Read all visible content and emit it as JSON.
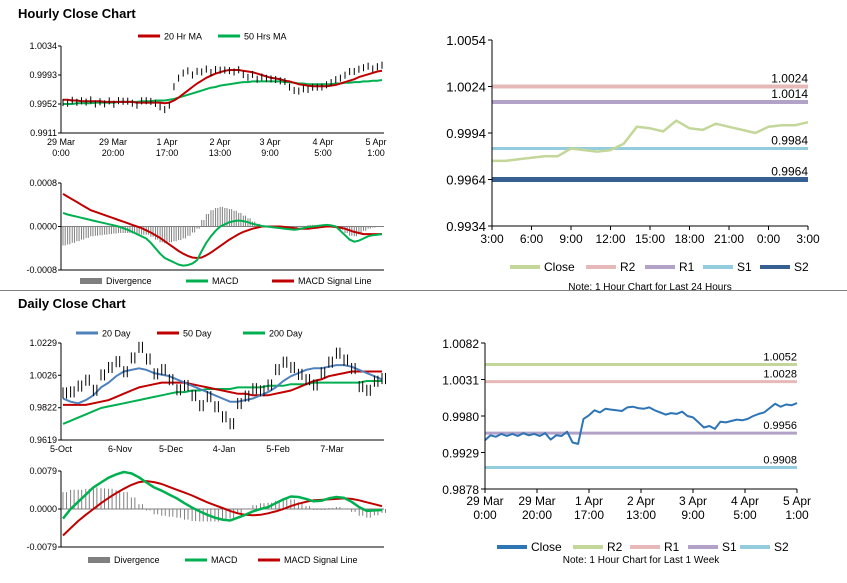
{
  "titles": {
    "hourly": "Hourly Close Chart",
    "daily": "Daily Close Chart"
  },
  "colors": {
    "ma20": "#c00000",
    "ma50": "#00b050",
    "price": "#000000",
    "divergence": "#7f7f7f",
    "macd": "#00b050",
    "signal": "#c00000",
    "close_light": "#c4d79b",
    "r2": "#e6b9b8",
    "r1": "#b3a2c7",
    "s1": "#93cddd",
    "s2": "#376092",
    "close_blue": "#2e75b6",
    "green_r2": "#c4d79b",
    "pink_r1": "#e6b9b8",
    "purple_s1": "#b3a2c7",
    "cyan_s2": "#93cddd"
  },
  "chart_data": [
    {
      "id": "hourly_price",
      "type": "line",
      "legend": [
        "20 Hr MA",
        "50 Hrs MA"
      ],
      "yticks": [
        "1.0034",
        "0.9993",
        "0.9952",
        "0.9911"
      ],
      "ylim": [
        0.9911,
        1.0034
      ],
      "xticks": [
        [
          "29 Mar",
          "0:00"
        ],
        [
          "29 Mar",
          "20:00"
        ],
        [
          "1 Apr",
          "17:00"
        ],
        [
          "2 Apr",
          "13:00"
        ],
        [
          "3 Apr",
          "9:00"
        ],
        [
          "4 Apr",
          "5:00"
        ],
        [
          "5 Apr",
          "1:00"
        ]
      ],
      "price": [
        0.9956,
        0.9954,
        0.9957,
        0.9953,
        0.9958,
        0.9955,
        0.9957,
        0.9954,
        0.9956,
        0.9952,
        0.9955,
        0.9953,
        0.9957,
        0.9955,
        0.9958,
        0.9954,
        0.995,
        0.9955,
        0.9958,
        0.9956,
        0.9952,
        0.995,
        0.9945,
        0.995,
        0.9975,
        0.999,
        0.9996,
        0.9998,
        0.9995,
        0.9999,
        0.9997,
        1.0,
        0.9998,
        1.0001,
        0.9999,
        1.0002,
        1.0,
        0.9997,
        0.9999,
        0.9995,
        0.999,
        0.9993,
        0.9989,
        0.9991,
        0.9988,
        0.9986,
        0.9988,
        0.9985,
        0.9983,
        0.9978,
        0.9972,
        0.997,
        0.9972,
        0.9974,
        0.9976,
        0.9975,
        0.9978,
        0.998,
        0.9982,
        0.9985,
        0.999,
        0.9993,
        0.9997,
        1.0,
        1.0002,
        1.0003,
        1.0004,
        1.0003,
        1.0005,
        1.0006
      ],
      "ma20": [
        0.9958,
        0.9958,
        0.9957,
        0.9957,
        0.9956,
        0.9956,
        0.9956,
        0.9956,
        0.9956,
        0.9955,
        0.9955,
        0.9955,
        0.9955,
        0.9955,
        0.9955,
        0.9955,
        0.9954,
        0.9954,
        0.9954,
        0.9954,
        0.9954,
        0.9954,
        0.9953,
        0.9954,
        0.9957,
        0.9961,
        0.9966,
        0.9971,
        0.9976,
        0.9981,
        0.9985,
        0.9989,
        0.9992,
        0.9995,
        0.9997,
        0.9999,
        1.0,
        1.0,
        1.0,
        0.9999,
        0.9998,
        0.9997,
        0.9995,
        0.9993,
        0.9991,
        0.9989,
        0.9988,
        0.9987,
        0.9985,
        0.9984,
        0.9982,
        0.998,
        0.9979,
        0.9978,
        0.9977,
        0.9977,
        0.9977,
        0.9977,
        0.9978,
        0.9979,
        0.9981,
        0.9983,
        0.9985,
        0.9987,
        0.999,
        0.9992,
        0.9994,
        0.9996,
        0.9998,
        0.9999
      ],
      "ma50": [
        0.9952,
        0.9952,
        0.9952,
        0.9953,
        0.9953,
        0.9953,
        0.9953,
        0.9954,
        0.9954,
        0.9954,
        0.9954,
        0.9954,
        0.9955,
        0.9955,
        0.9955,
        0.9955,
        0.9955,
        0.9956,
        0.9956,
        0.9956,
        0.9957,
        0.9957,
        0.9957,
        0.9958,
        0.9959,
        0.9961,
        0.9963,
        0.9965,
        0.9967,
        0.9969,
        0.9971,
        0.9973,
        0.9975,
        0.9976,
        0.9978,
        0.9979,
        0.998,
        0.9981,
        0.9982,
        0.9983,
        0.9983,
        0.9984,
        0.9984,
        0.9984,
        0.9984,
        0.9984,
        0.9984,
        0.9984,
        0.9983,
        0.9983,
        0.9982,
        0.9981,
        0.9981,
        0.998,
        0.998,
        0.998,
        0.998,
        0.998,
        0.998,
        0.9981,
        0.9981,
        0.9982,
        0.9982,
        0.9983,
        0.9983,
        0.9984,
        0.9984,
        0.9985,
        0.9985,
        0.9986
      ]
    },
    {
      "id": "hourly_macd",
      "type": "line",
      "yticks": [
        "0.0008",
        "0.0000",
        "-0.0008"
      ],
      "ylim": [
        -0.0008,
        0.0008
      ],
      "legend": [
        "Divergence",
        "MACD",
        "MACD Signal Line"
      ],
      "macd": [
        0.00025,
        0.00022,
        0.0002,
        0.00018,
        0.00016,
        0.00014,
        0.00012,
        0.0001,
        8e-05,
        6e-05,
        4e-05,
        2e-05,
        0,
        -3e-05,
        -6e-05,
        -0.0001,
        -0.00014,
        -0.00018,
        -0.00022,
        -0.0003,
        -0.0004,
        -0.0005,
        -0.00058,
        -0.00062,
        -0.00066,
        -0.0007,
        -0.00072,
        -0.00071,
        -0.00068,
        -0.00062,
        -0.00045,
        -0.0003,
        -0.00018,
        -8e-05,
        0,
        4e-05,
        8e-05,
        0.0001,
        0.00011,
        0.0001,
        8e-05,
        5e-05,
        3e-05,
        1e-05,
        0,
        -1e-05,
        -2e-05,
        -3e-05,
        -4e-05,
        -5e-05,
        -6e-05,
        -5e-05,
        -3e-05,
        -1e-05,
        0,
        1e-05,
        2e-05,
        3e-05,
        2e-05,
        0,
        -8e-05,
        -0.00016,
        -0.00024,
        -0.00028,
        -0.00026,
        -0.00022,
        -0.00018,
        -0.00016,
        -0.00015,
        -0.00014
      ],
      "signal": [
        0.0006,
        0.00055,
        0.0005,
        0.00045,
        0.0004,
        0.00035,
        0.0003,
        0.00027,
        0.00024,
        0.00021,
        0.00018,
        0.00015,
        0.00012,
        9e-05,
        6e-05,
        3e-05,
        0,
        -3e-05,
        -7e-05,
        -0.00011,
        -0.00016,
        -0.00021,
        -0.00027,
        -0.00033,
        -0.00039,
        -0.00045,
        -0.0005,
        -0.00054,
        -0.00057,
        -0.00058,
        -0.00057,
        -0.00053,
        -0.00048,
        -0.00042,
        -0.00036,
        -0.0003,
        -0.00024,
        -0.00019,
        -0.00014,
        -0.0001,
        -7e-05,
        -4e-05,
        -2e-05,
        0,
        0,
        0,
        0,
        0,
        -1e-05,
        -2e-05,
        -3e-05,
        -4e-05,
        -4e-05,
        -4e-05,
        -3e-05,
        -2e-05,
        -1e-05,
        0,
        0,
        -1e-05,
        -2e-05,
        -4e-05,
        -7e-05,
        -0.0001,
        -0.00012,
        -0.00014,
        -0.00014,
        -0.00014,
        -0.00014,
        -0.00014
      ]
    },
    {
      "id": "hourly_pivots",
      "type": "line",
      "yticks": [
        "1.0054",
        "1.0024",
        "0.9994",
        "0.9964",
        "0.9934"
      ],
      "ylim": [
        0.9934,
        1.0054
      ],
      "xticks": [
        "3:00",
        "6:00",
        "9:00",
        "12:00",
        "15:00",
        "18:00",
        "21:00",
        "0:00",
        "3:00"
      ],
      "close": [
        0.9976,
        0.9976,
        0.9977,
        0.9978,
        0.9979,
        0.9979,
        0.9984,
        0.9983,
        0.9982,
        0.9983,
        0.9987,
        0.9998,
        0.9997,
        0.9995,
        1.0002,
        0.9997,
        0.9996,
        1.0,
        0.9998,
        0.9996,
        0.9994,
        0.9998,
        0.9999,
        0.9999,
        1.0001
      ],
      "levels": {
        "R2": 1.0024,
        "R1": 1.0014,
        "S1": 0.9984,
        "S2": 0.9964
      },
      "labels": [
        "1.0024",
        "1.0014",
        "0.9984",
        "0.9964"
      ],
      "legend": [
        "Close",
        "R2",
        "R1",
        "S1",
        "S2"
      ],
      "note": "Note: 1 Hour Chart for Last 24 Hours"
    },
    {
      "id": "daily_price",
      "type": "line",
      "legend": [
        "20 Day",
        "50 Day",
        "200 Day"
      ],
      "yticks": [
        "1.0229",
        "1.0026",
        "0.9822",
        "0.9619"
      ],
      "ylim": [
        0.9619,
        1.0229
      ],
      "xticks": [
        "5-Oct",
        "6-Nov",
        "5-Dec",
        "4-Jan",
        "5-Feb",
        "7-Mar"
      ],
      "price": [
        0.993,
        0.991,
        0.995,
        0.999,
        0.993,
        1.003,
        1.008,
        1.012,
        1.006,
        1.015,
        1.019,
        1.012,
        1.003,
        1.006,
        1.0,
        0.994,
        0.997,
        0.991,
        0.985,
        0.988,
        0.982,
        0.976,
        0.972,
        0.985,
        0.99,
        0.995,
        0.994,
        0.998,
        1.005,
        1.01,
        1.007,
        1.003,
        1.0,
        0.997,
        1.005,
        1.012,
        1.018,
        1.011,
        1.006,
        0.995,
        0.993,
        0.999,
        1.001
      ],
      "ma20": [
        0.988,
        0.986,
        0.985,
        0.987,
        0.99,
        0.995,
        0.998,
        1.002,
        1.005,
        1.006,
        1.007,
        1.006,
        1.004,
        1.003,
        1.002,
        1.0,
        0.998,
        0.996,
        0.994,
        0.992,
        0.99,
        0.988,
        0.986,
        0.986,
        0.987,
        0.988,
        0.99,
        0.992,
        0.995,
        0.999,
        1.002,
        1.004,
        1.006,
        1.007,
        1.007,
        1.008,
        1.009,
        1.009,
        1.008,
        1.006,
        1.004,
        1.002,
        1.0
      ],
      "ma50": [
        0.984,
        0.984,
        0.984,
        0.984,
        0.985,
        0.986,
        0.987,
        0.989,
        0.991,
        0.993,
        0.995,
        0.996,
        0.997,
        0.998,
        0.998,
        0.998,
        0.998,
        0.997,
        0.996,
        0.995,
        0.994,
        0.993,
        0.992,
        0.991,
        0.991,
        0.99,
        0.99,
        0.99,
        0.991,
        0.992,
        0.993,
        0.995,
        0.997,
        0.999,
        1.0,
        1.002,
        1.003,
        1.004,
        1.005,
        1.005,
        1.005,
        1.005,
        1.005
      ],
      "ma200": [
        0.972,
        0.974,
        0.976,
        0.978,
        0.98,
        0.982,
        0.983,
        0.984,
        0.985,
        0.986,
        0.987,
        0.988,
        0.989,
        0.99,
        0.991,
        0.992,
        0.992,
        0.993,
        0.993,
        0.994,
        0.994,
        0.994,
        0.994,
        0.995,
        0.995,
        0.995,
        0.995,
        0.996,
        0.996,
        0.996,
        0.997,
        0.997,
        0.997,
        0.998,
        0.998,
        0.998,
        0.998,
        0.998,
        0.998,
        0.998,
        0.999,
        0.999,
        0.999
      ]
    },
    {
      "id": "daily_macd",
      "type": "line",
      "yticks": [
        "0.0079",
        "0.0000",
        "-0.0079"
      ],
      "ylim": [
        -0.0079,
        0.0079
      ],
      "legend": [
        "Divergence",
        "MACD",
        "MACD Signal Line"
      ],
      "macd": [
        -0.002,
        0.0,
        0.0015,
        0.003,
        0.0045,
        0.0055,
        0.0065,
        0.0072,
        0.0077,
        0.0074,
        0.0066,
        0.0055,
        0.0045,
        0.0038,
        0.003,
        0.0022,
        0.0012,
        0.0003,
        -0.0005,
        -0.0012,
        -0.0018,
        -0.0022,
        -0.0024,
        -0.0018,
        -0.0012,
        -0.0005,
        0.0,
        0.0004,
        0.0012,
        0.002,
        0.0026,
        0.0025,
        0.0021,
        0.0016,
        0.0017,
        0.0022,
        0.0025,
        0.0023,
        0.0015,
        0.0004,
        -0.0004,
        -0.0003,
        -0.0002
      ],
      "signal": [
        -0.0055,
        -0.004,
        -0.0025,
        -0.0012,
        0.0,
        0.0012,
        0.0023,
        0.0033,
        0.0042,
        0.005,
        0.0056,
        0.0058,
        0.0056,
        0.0052,
        0.0046,
        0.004,
        0.0034,
        0.0028,
        0.0021,
        0.0014,
        0.0008,
        0.0002,
        -0.0004,
        -0.0009,
        -0.0012,
        -0.0013,
        -0.0012,
        -0.0009,
        -0.0005,
        0.0,
        0.0006,
        0.0011,
        0.0015,
        0.0018,
        0.0019,
        0.002,
        0.0021,
        0.0022,
        0.0021,
        0.0018,
        0.0014,
        0.001,
        0.0006
      ]
    },
    {
      "id": "daily_pivots",
      "type": "line",
      "yticks": [
        "1.0082",
        "1.0031",
        "0.9980",
        "0.9929",
        "0.9878"
      ],
      "ylim": [
        0.9878,
        1.0082
      ],
      "xticks": [
        [
          "29 Mar",
          "0:00"
        ],
        [
          "29 Mar",
          "20:00"
        ],
        [
          "1 Apr",
          "17:00"
        ],
        [
          "2 Apr",
          "13:00"
        ],
        [
          "3 Apr",
          "9:00"
        ],
        [
          "4 Apr",
          "5:00"
        ],
        [
          "5 Apr",
          "1:00"
        ]
      ],
      "close": [
        0.9946,
        0.9953,
        0.9951,
        0.9955,
        0.9952,
        0.9955,
        0.9952,
        0.9956,
        0.9953,
        0.9955,
        0.9952,
        0.9956,
        0.9947,
        0.9953,
        0.9952,
        0.9958,
        0.9943,
        0.9941,
        0.9976,
        0.9981,
        0.9988,
        0.9985,
        0.999,
        0.9989,
        0.9988,
        0.9987,
        0.9992,
        0.9993,
        0.9991,
        0.999,
        0.9992,
        0.9988,
        0.9985,
        0.9982,
        0.9984,
        0.9983,
        0.9986,
        0.998,
        0.9978,
        0.9971,
        0.9964,
        0.9966,
        0.9962,
        0.9972,
        0.9971,
        0.9973,
        0.9975,
        0.9974,
        0.9976,
        0.998,
        0.9983,
        0.9985,
        0.9991,
        0.9997,
        0.9993,
        0.9996,
        0.9995,
        0.9998
      ],
      "levels": {
        "R2": 1.0052,
        "R1": 1.0028,
        "S1": 0.9956,
        "S2": 0.9908
      },
      "labels": [
        "1.0052",
        "1.0028",
        "0.9956",
        "0.9908"
      ],
      "legend": [
        "Close",
        "R2",
        "R1",
        "S1",
        "S2"
      ],
      "note": "Note: 1 Hour Chart for Last 1 Week"
    }
  ]
}
